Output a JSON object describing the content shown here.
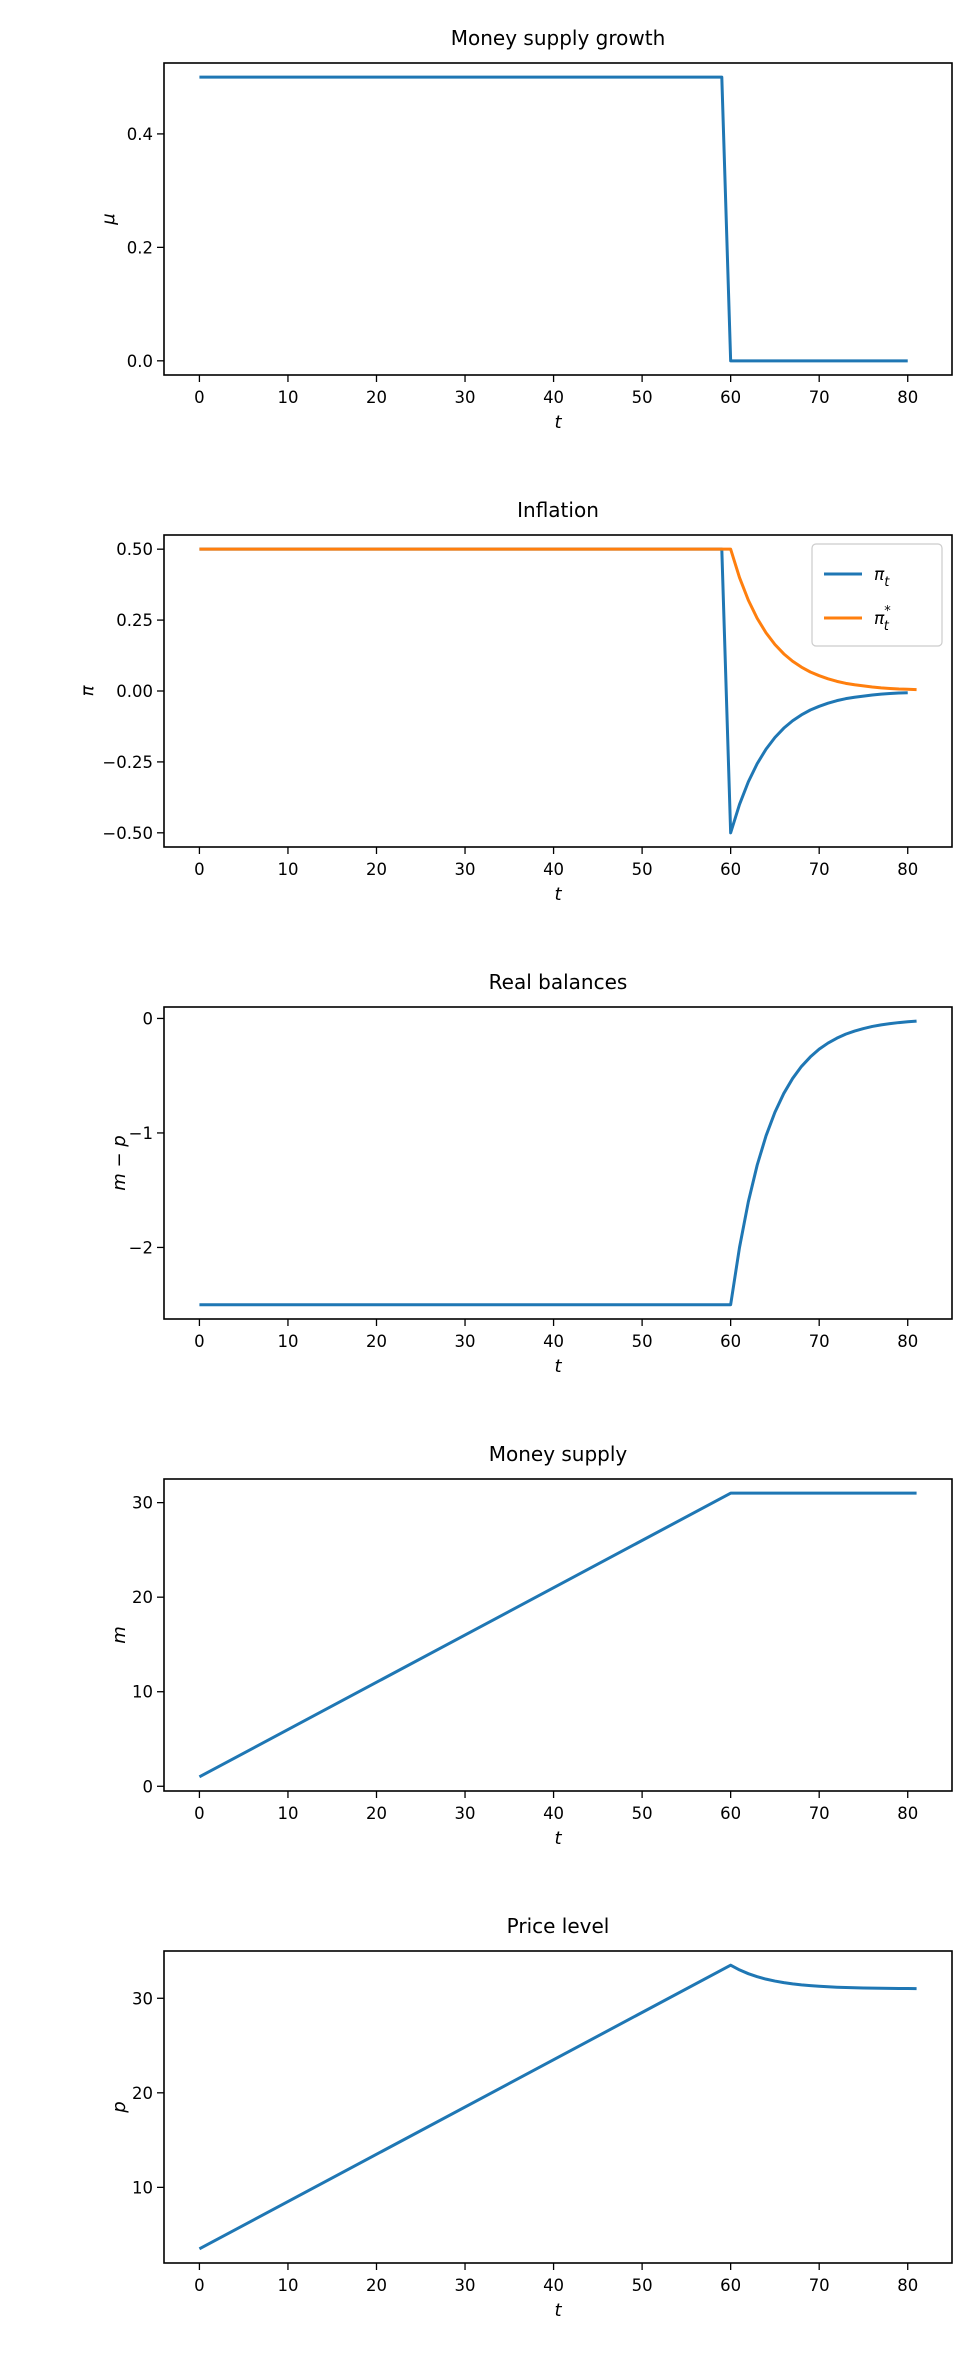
{
  "chart_data": [
    {
      "type": "line",
      "title": "Money supply growth",
      "xlabel": "t",
      "ylabel": "μ",
      "xlim": [
        -4,
        85
      ],
      "ylim": [
        -0.025,
        0.525
      ],
      "xticks": [
        0,
        10,
        20,
        30,
        40,
        50,
        60,
        70,
        80
      ],
      "yticks": [
        0.0,
        0.2,
        0.4
      ],
      "ytick_labels": [
        "0.0",
        "0.2",
        "0.4"
      ],
      "legend": null,
      "grid": false,
      "series": [
        {
          "color": "#1f77b4",
          "x": [
            0,
            59,
            60,
            80
          ],
          "y": [
            0.5,
            0.5,
            0.0,
            0.0
          ]
        }
      ]
    },
    {
      "type": "line",
      "title": "Inflation",
      "xlabel": "t",
      "ylabel": "π",
      "xlim": [
        -4,
        85
      ],
      "ylim": [
        -0.55,
        0.55
      ],
      "xticks": [
        0,
        10,
        20,
        30,
        40,
        50,
        60,
        70,
        80
      ],
      "yticks": [
        -0.5,
        -0.25,
        0.0,
        0.25,
        0.5
      ],
      "ytick_labels": [
        "−0.50",
        "−0.25",
        "0.00",
        "0.25",
        "0.50"
      ],
      "legend": "upper right",
      "grid": false,
      "series": [
        {
          "name": "π_t",
          "label_base": "π",
          "label_sub": "t",
          "label_sup": "",
          "color": "#1f77b4",
          "x": [
            0,
            59,
            60,
            61,
            62,
            63,
            64,
            65,
            66,
            67,
            68,
            69,
            70,
            71,
            72,
            73,
            74,
            75,
            76,
            77,
            78,
            79,
            80
          ],
          "y": [
            0.5,
            0.5,
            -0.5,
            -0.4,
            -0.32,
            -0.256,
            -0.205,
            -0.164,
            -0.131,
            -0.105,
            -0.084,
            -0.067,
            -0.054,
            -0.043,
            -0.034,
            -0.027,
            -0.022,
            -0.018,
            -0.014,
            -0.011,
            -0.009,
            -0.007,
            -0.006
          ]
        },
        {
          "name": "π_t^*",
          "label_base": "π",
          "label_sub": "t",
          "label_sup": "*",
          "color": "#ff7f0e",
          "x": [
            0,
            60,
            61,
            62,
            63,
            64,
            65,
            66,
            67,
            68,
            69,
            70,
            71,
            72,
            73,
            74,
            75,
            76,
            77,
            78,
            79,
            80,
            81
          ],
          "y": [
            0.5,
            0.5,
            0.4,
            0.32,
            0.256,
            0.205,
            0.164,
            0.131,
            0.105,
            0.084,
            0.067,
            0.054,
            0.043,
            0.034,
            0.027,
            0.022,
            0.018,
            0.014,
            0.011,
            0.009,
            0.007,
            0.006,
            0.005
          ]
        }
      ]
    },
    {
      "type": "line",
      "title": "Real balances",
      "xlabel": "t",
      "ylabel": "m − p",
      "xlim": [
        -4,
        85
      ],
      "ylim": [
        -2.625,
        0.1
      ],
      "xticks": [
        0,
        10,
        20,
        30,
        40,
        50,
        60,
        70,
        80
      ],
      "yticks": [
        -2,
        -1,
        0
      ],
      "ytick_labels": [
        "−2",
        "−1",
        "0"
      ],
      "legend": null,
      "grid": false,
      "series": [
        {
          "color": "#1f77b4",
          "x": [
            0,
            60,
            61,
            62,
            63,
            64,
            65,
            66,
            67,
            68,
            69,
            70,
            71,
            72,
            73,
            74,
            75,
            76,
            77,
            78,
            79,
            80,
            81
          ],
          "y": [
            -2.5,
            -2.5,
            -2.0,
            -1.6,
            -1.28,
            -1.024,
            -0.819,
            -0.655,
            -0.524,
            -0.419,
            -0.336,
            -0.268,
            -0.215,
            -0.172,
            -0.137,
            -0.11,
            -0.088,
            -0.07,
            -0.056,
            -0.045,
            -0.036,
            -0.029,
            -0.023
          ]
        }
      ]
    },
    {
      "type": "line",
      "title": "Money supply",
      "xlabel": "t",
      "ylabel": "m",
      "xlim": [
        -4,
        85
      ],
      "ylim": [
        -0.5,
        32.5
      ],
      "xticks": [
        0,
        10,
        20,
        30,
        40,
        50,
        60,
        70,
        80
      ],
      "yticks": [
        0,
        10,
        20,
        30
      ],
      "ytick_labels": [
        "0",
        "10",
        "20",
        "30"
      ],
      "legend": null,
      "grid": false,
      "series": [
        {
          "color": "#1f77b4",
          "x": [
            0,
            60,
            81
          ],
          "y": [
            1,
            31,
            31
          ]
        }
      ]
    },
    {
      "type": "line",
      "title": "Price level",
      "xlabel": "t",
      "ylabel": "p",
      "xlim": [
        -4,
        85
      ],
      "ylim": [
        2,
        35
      ],
      "xticks": [
        0,
        10,
        20,
        30,
        40,
        50,
        60,
        70,
        80
      ],
      "yticks": [
        10,
        20,
        30
      ],
      "ytick_labels": [
        "10",
        "20",
        "30"
      ],
      "legend": null,
      "grid": false,
      "series": [
        {
          "color": "#1f77b4",
          "x": [
            0,
            60,
            61,
            62,
            63,
            64,
            65,
            66,
            67,
            68,
            69,
            70,
            71,
            72,
            73,
            74,
            75,
            76,
            77,
            78,
            79,
            80,
            81
          ],
          "y": [
            3.5,
            33.5,
            33.0,
            32.6,
            32.28,
            32.024,
            31.819,
            31.655,
            31.524,
            31.419,
            31.336,
            31.268,
            31.215,
            31.172,
            31.137,
            31.11,
            31.088,
            31.07,
            31.056,
            31.045,
            31.036,
            31.029,
            31.023
          ]
        }
      ]
    }
  ]
}
